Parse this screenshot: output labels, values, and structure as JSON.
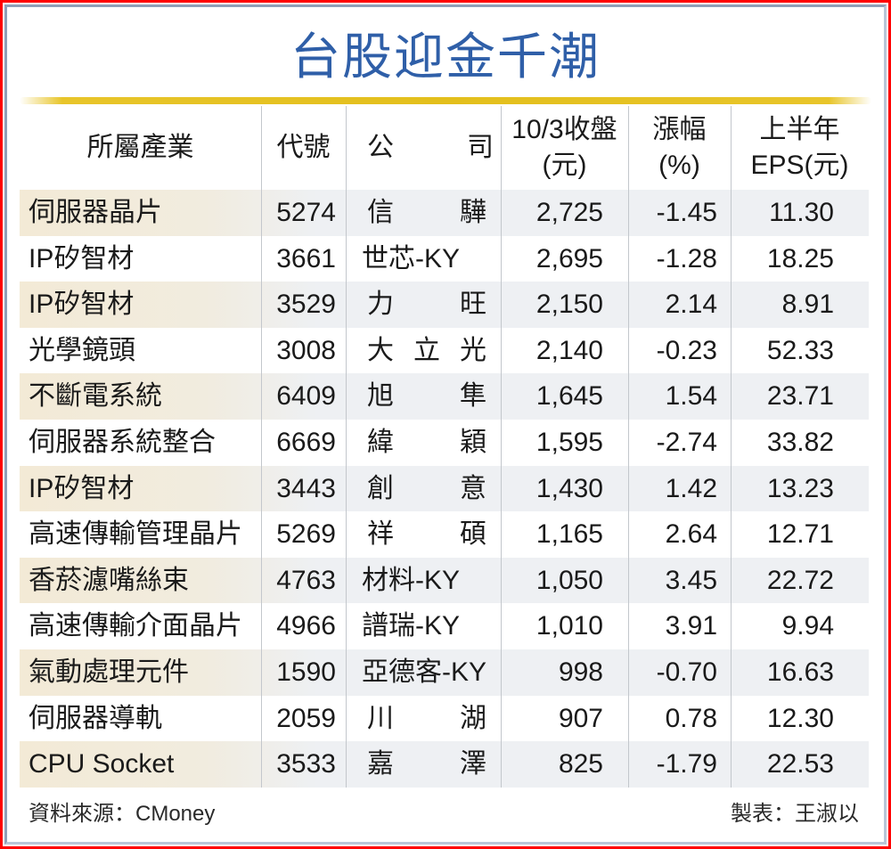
{
  "title": "台股迎金千潮",
  "colors": {
    "title": "#2f5fa8",
    "rule": "#e3bf1c",
    "outer_border": "#ff0000",
    "inner_border": "#b8c6d8",
    "shade_left": "#f3ead6",
    "shade_right": "#eef0f3"
  },
  "table": {
    "headers": {
      "industry": "所屬產業",
      "code": "代號",
      "company_1": "公",
      "company_2": "司",
      "price_1": "10/3收盤",
      "price_2": "(元)",
      "change_1": "漲幅",
      "change_2": "(%)",
      "eps_1": "上半年",
      "eps_2": "EPS(元)"
    },
    "rows": [
      {
        "industry": "伺服器晶片",
        "code": "5274",
        "company": "信驊",
        "company_l": "信",
        "company_r": "驊",
        "price": "2,725",
        "change": "-1.45",
        "eps": "11.30"
      },
      {
        "industry": "IP矽智材",
        "code": "3661",
        "company": "世芯-KY",
        "company_l": "世芯-KY",
        "company_r": "",
        "price": "2,695",
        "change": "-1.28",
        "eps": "18.25"
      },
      {
        "industry": "IP矽智材",
        "code": "3529",
        "company": "力旺",
        "company_l": "力",
        "company_r": "旺",
        "price": "2,150",
        "change": "2.14",
        "eps": "8.91"
      },
      {
        "industry": "光學鏡頭",
        "code": "3008",
        "company": "大立光",
        "company_l": "大 立 光",
        "company_r": "",
        "price": "2,140",
        "change": "-0.23",
        "eps": "52.33"
      },
      {
        "industry": "不斷電系統",
        "code": "6409",
        "company": "旭隼",
        "company_l": "旭",
        "company_r": "隼",
        "price": "1,645",
        "change": "1.54",
        "eps": "23.71"
      },
      {
        "industry": "伺服器系統整合",
        "code": "6669",
        "company": "緯穎",
        "company_l": "緯",
        "company_r": "穎",
        "price": "1,595",
        "change": "-2.74",
        "eps": "33.82"
      },
      {
        "industry": "IP矽智材",
        "code": "3443",
        "company": "創意",
        "company_l": "創",
        "company_r": "意",
        "price": "1,430",
        "change": "1.42",
        "eps": "13.23"
      },
      {
        "industry": "高速傳輸管理晶片",
        "code": "5269",
        "company": "祥碩",
        "company_l": "祥",
        "company_r": "碩",
        "price": "1,165",
        "change": "2.64",
        "eps": "12.71"
      },
      {
        "industry": "香菸濾嘴絲束",
        "code": "4763",
        "company": "材料-KY",
        "company_l": "材料-KY",
        "company_r": "",
        "price": "1,050",
        "change": "3.45",
        "eps": "22.72"
      },
      {
        "industry": "高速傳輸介面晶片",
        "code": "4966",
        "company": "譜瑞-KY",
        "company_l": "譜瑞-KY",
        "company_r": "",
        "price": "1,010",
        "change": "3.91",
        "eps": "9.94"
      },
      {
        "industry": "氣動處理元件",
        "code": "1590",
        "company": "亞德客-KY",
        "company_l": "亞德客-KY",
        "company_r": "",
        "price": "998",
        "change": "-0.70",
        "eps": "16.63"
      },
      {
        "industry": "伺服器導軌",
        "code": "2059",
        "company": "川湖",
        "company_l": "川",
        "company_r": "湖",
        "price": "907",
        "change": "0.78",
        "eps": "12.30"
      },
      {
        "industry": "CPU Socket",
        "code": "3533",
        "company": "嘉澤",
        "company_l": "嘉",
        "company_r": "澤",
        "price": "825",
        "change": "-1.79",
        "eps": "22.53"
      }
    ]
  },
  "footer": {
    "source": "資料來源：CMoney",
    "author": "製表：王淑以"
  }
}
